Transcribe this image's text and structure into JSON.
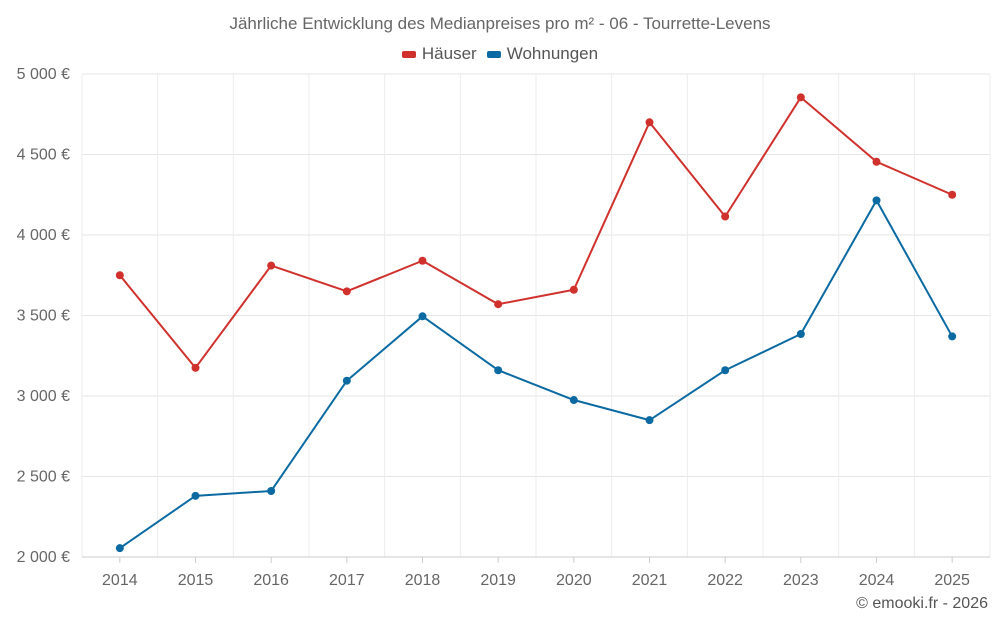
{
  "chart_data": {
    "type": "line",
    "title": "Jährliche Entwicklung des Medianpreises pro m² - 06 - Tourrette-Levens",
    "xlabel": "",
    "ylabel": "",
    "categories": [
      "2014",
      "2015",
      "2016",
      "2017",
      "2018",
      "2019",
      "2020",
      "2021",
      "2022",
      "2023",
      "2024",
      "2025"
    ],
    "ylim": [
      2000,
      5000
    ],
    "yticks": [
      2000,
      2500,
      3000,
      3500,
      4000,
      4500,
      5000
    ],
    "ytick_labels": [
      "2 000 €",
      "2 500 €",
      "3 000 €",
      "3 500 €",
      "4 000 €",
      "4 500 €",
      "5 000 €"
    ],
    "grid": true,
    "legend_position": "top-center",
    "series": [
      {
        "name": "Häuser",
        "color": "#d0312d",
        "values": [
          3750,
          3175,
          3810,
          3650,
          3840,
          3570,
          3660,
          4700,
          4115,
          4855,
          4455,
          4250
        ]
      },
      {
        "name": "Wohnungen",
        "color": "#0b6aa2",
        "values": [
          2055,
          2380,
          2410,
          3095,
          3495,
          3160,
          2975,
          2850,
          3160,
          3385,
          4215,
          3370
        ]
      }
    ]
  },
  "footer": {
    "copyright": "© emooki.fr - 2026"
  }
}
